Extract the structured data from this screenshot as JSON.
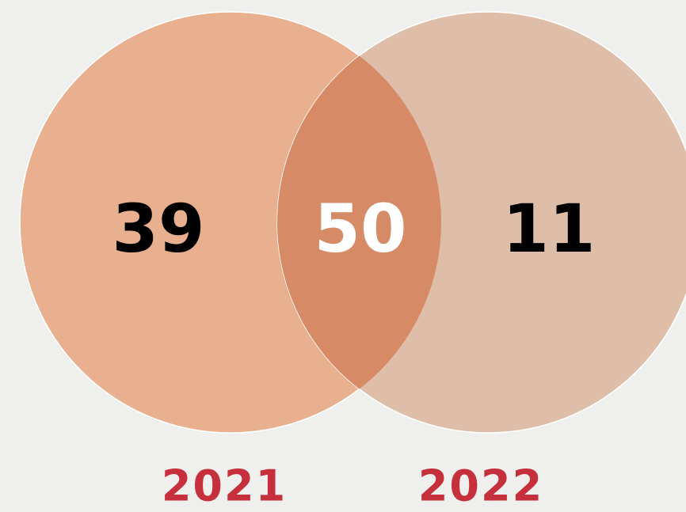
{
  "chart_data": {
    "type": "venn",
    "sets": [
      {
        "name": "2021",
        "only": 39,
        "color": "#e8b08e"
      },
      {
        "name": "2022",
        "only": 11,
        "color": "#dfbea9"
      }
    ],
    "intersection": 50,
    "intersection_color": "#d68a65",
    "label_color": "#c5303c"
  }
}
